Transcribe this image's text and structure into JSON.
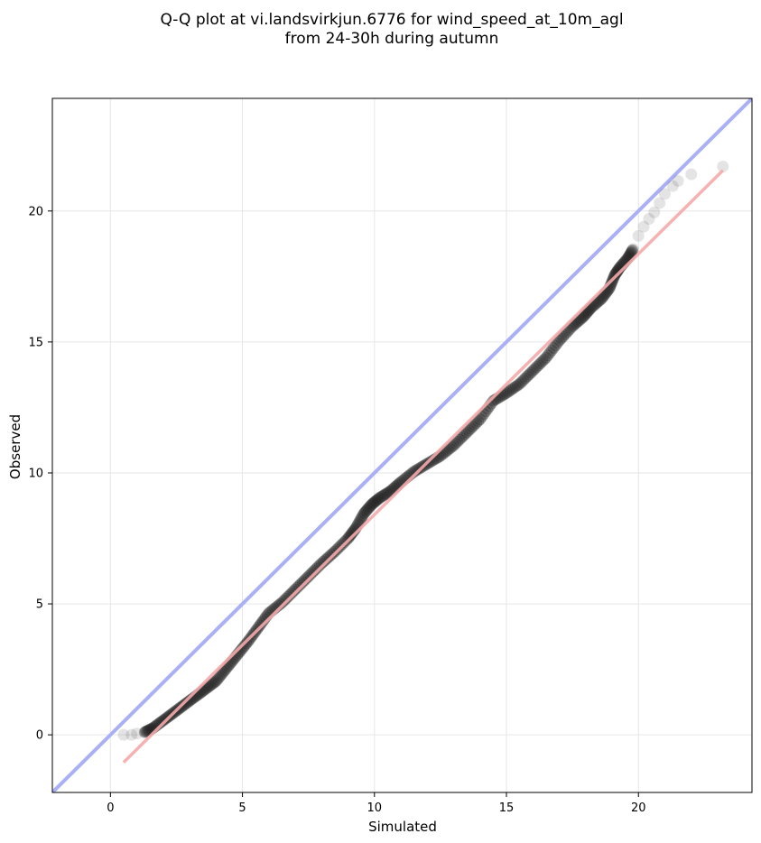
{
  "chart_data": {
    "type": "scatter",
    "title_lines": [
      "Q-Q plot at vi.landsvirkjun.6776 for wind_speed_at_10m_agl",
      "from 24-30h during autumn"
    ],
    "xlabel": "Simulated",
    "ylabel": "Observed",
    "xlim": [
      -2.2,
      24.3
    ],
    "ylim": [
      -2.2,
      24.3
    ],
    "xticks": [
      0,
      5,
      10,
      15,
      20
    ],
    "yticks": [
      0,
      5,
      10,
      15,
      20
    ],
    "grid": true,
    "colors": {
      "points": "#222222",
      "identity_line": "#aab0f5",
      "fit_line": "#f5aaaa",
      "grid": "#e6e6e6"
    },
    "identity_line": {
      "from": [
        -2.2,
        -2.2
      ],
      "to": [
        24.3,
        24.3
      ]
    },
    "fit_line": {
      "from": [
        0.5,
        -1.05
      ],
      "to": [
        23.2,
        21.55
      ]
    },
    "points": [
      [
        0.5,
        0.0
      ],
      [
        0.8,
        0.0
      ],
      [
        1.0,
        0.05
      ],
      [
        1.3,
        0.1
      ],
      [
        1.6,
        0.25
      ],
      [
        2.0,
        0.55
      ],
      [
        2.4,
        0.85
      ],
      [
        2.8,
        1.15
      ],
      [
        3.2,
        1.45
      ],
      [
        3.6,
        1.75
      ],
      [
        4.0,
        2.05
      ],
      [
        4.4,
        2.55
      ],
      [
        4.8,
        3.05
      ],
      [
        5.2,
        3.55
      ],
      [
        5.6,
        4.1
      ],
      [
        6.0,
        4.65
      ],
      [
        6.5,
        5.05
      ],
      [
        7.0,
        5.55
      ],
      [
        7.5,
        6.05
      ],
      [
        8.0,
        6.55
      ],
      [
        8.5,
        7.0
      ],
      [
        9.0,
        7.5
      ],
      [
        9.3,
        7.9
      ],
      [
        9.6,
        8.45
      ],
      [
        9.9,
        8.8
      ],
      [
        10.2,
        9.05
      ],
      [
        10.6,
        9.3
      ],
      [
        11.0,
        9.65
      ],
      [
        11.5,
        10.05
      ],
      [
        12.0,
        10.35
      ],
      [
        12.5,
        10.65
      ],
      [
        13.0,
        11.05
      ],
      [
        13.5,
        11.55
      ],
      [
        14.0,
        12.05
      ],
      [
        14.5,
        12.75
      ],
      [
        15.0,
        13.05
      ],
      [
        15.5,
        13.4
      ],
      [
        16.0,
        13.9
      ],
      [
        16.5,
        14.4
      ],
      [
        17.0,
        15.05
      ],
      [
        17.5,
        15.6
      ],
      [
        17.9,
        15.95
      ],
      [
        18.2,
        16.3
      ],
      [
        18.6,
        16.65
      ],
      [
        18.9,
        17.05
      ],
      [
        19.1,
        17.55
      ],
      [
        19.3,
        17.85
      ],
      [
        19.6,
        18.2
      ],
      [
        19.8,
        18.55
      ],
      [
        20.0,
        19.05
      ],
      [
        20.2,
        19.4
      ],
      [
        20.4,
        19.7
      ],
      [
        20.6,
        19.95
      ],
      [
        20.8,
        20.3
      ],
      [
        21.0,
        20.65
      ],
      [
        21.3,
        20.95
      ],
      [
        21.5,
        21.15
      ],
      [
        22.0,
        21.4
      ],
      [
        23.2,
        21.7
      ]
    ]
  }
}
